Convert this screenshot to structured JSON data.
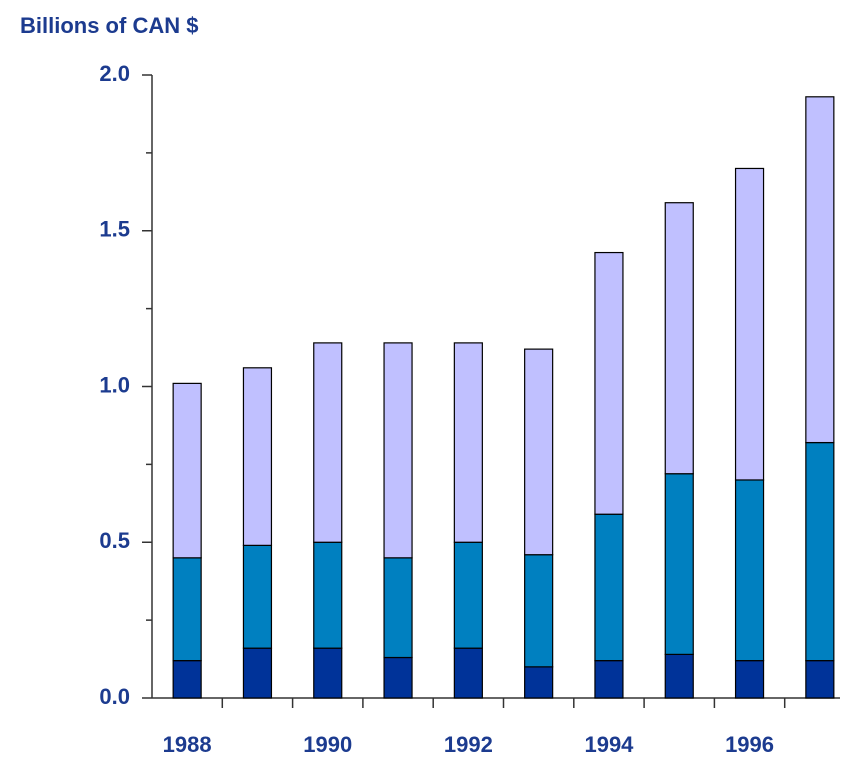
{
  "chart_data": {
    "type": "stacked_bar",
    "title": "Billions of CAN $",
    "categories": [
      "1988",
      null,
      "1990",
      null,
      "1992",
      null,
      "1994",
      null,
      "1996",
      null
    ],
    "series": [
      {
        "color": "#003399",
        "values": [
          0.12,
          0.16,
          0.16,
          0.13,
          0.16,
          0.1,
          0.12,
          0.14,
          0.12,
          0.12
        ]
      },
      {
        "color": "#0080c0",
        "values": [
          0.33,
          0.33,
          0.34,
          0.32,
          0.34,
          0.36,
          0.47,
          0.58,
          0.58,
          0.7
        ]
      },
      {
        "color": "#c0c0ff",
        "values": [
          0.56,
          0.57,
          0.64,
          0.69,
          0.64,
          0.66,
          0.84,
          0.87,
          1.0,
          1.11
        ]
      }
    ],
    "ylim": [
      0,
      2.0
    ],
    "yticks": [
      {
        "value": 0,
        "label": "0.0"
      },
      {
        "value": 0.5,
        "label": "0.5"
      },
      {
        "value": 1.0,
        "label": "1.0"
      },
      {
        "value": 1.5,
        "label": "1.5"
      },
      {
        "value": 2.0,
        "label": "2.0"
      }
    ],
    "yticks_minor": [
      0.25,
      0.75,
      1.25,
      1.75
    ],
    "grid": false
  }
}
